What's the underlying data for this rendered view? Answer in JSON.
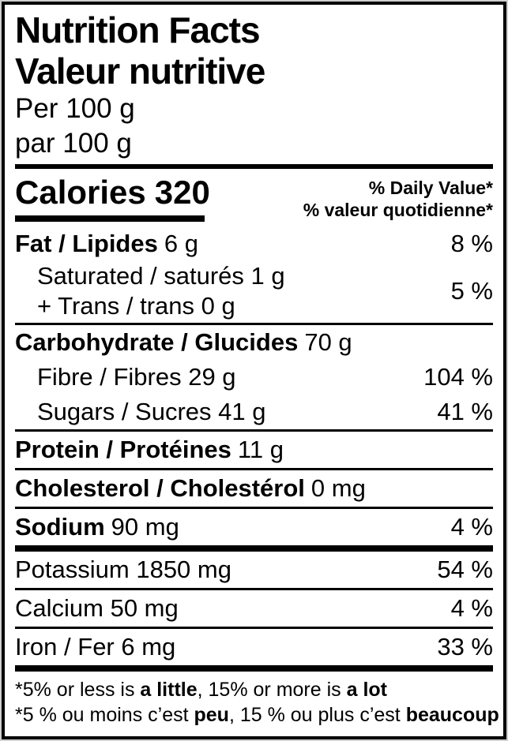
{
  "title_en": "Nutrition Facts",
  "title_fr": "Valeur nutritive",
  "serving_en": "Per 100 g",
  "serving_fr": "par 100 g",
  "calories_label": "Calories",
  "calories_value": "320",
  "dv_header_en": "% Daily Value*",
  "dv_header_fr": "% valeur quotidienne*",
  "rows": {
    "fat": {
      "name": "Fat / Lipides",
      "amount": "6 g",
      "dv": "8 %"
    },
    "saturated": {
      "line1": "Saturated / saturés 1 g",
      "line2": "+ Trans / trans 0 g",
      "dv": "5 %"
    },
    "carbohydrate": {
      "name": "Carbohydrate / Glucides",
      "amount": "70 g"
    },
    "fibre": {
      "name": "Fibre / Fibres 29 g",
      "dv": "104 %"
    },
    "sugars": {
      "name": "Sugars / Sucres 41 g",
      "dv": "41 %"
    },
    "protein": {
      "name": "Protein / Protéines",
      "amount": "11 g"
    },
    "cholesterol": {
      "name": "Cholesterol / Cholestérol",
      "amount": "0 mg"
    },
    "sodium": {
      "name": "Sodium",
      "amount": "90 mg",
      "dv": "4 %"
    },
    "potassium": {
      "name": "Potassium 1850 mg",
      "dv": "54 %"
    },
    "calcium": {
      "name": "Calcium 50 mg",
      "dv": "4 %"
    },
    "iron": {
      "name": "Iron / Fer 6 mg",
      "dv": "33 %"
    }
  },
  "footnote_en": {
    "p1": "*5% or less is ",
    "b1": "a little",
    "p2": ", 15% or more is ",
    "b2": "a lot"
  },
  "footnote_fr": {
    "p1": "*5 % ou moins c’est ",
    "b1": "peu",
    "p2": ", 15 % ou plus c’est ",
    "b2": "beaucoup"
  },
  "colors": {
    "text": "#000000",
    "background": "#ffffff",
    "page_bg": "#cfcfcf"
  }
}
